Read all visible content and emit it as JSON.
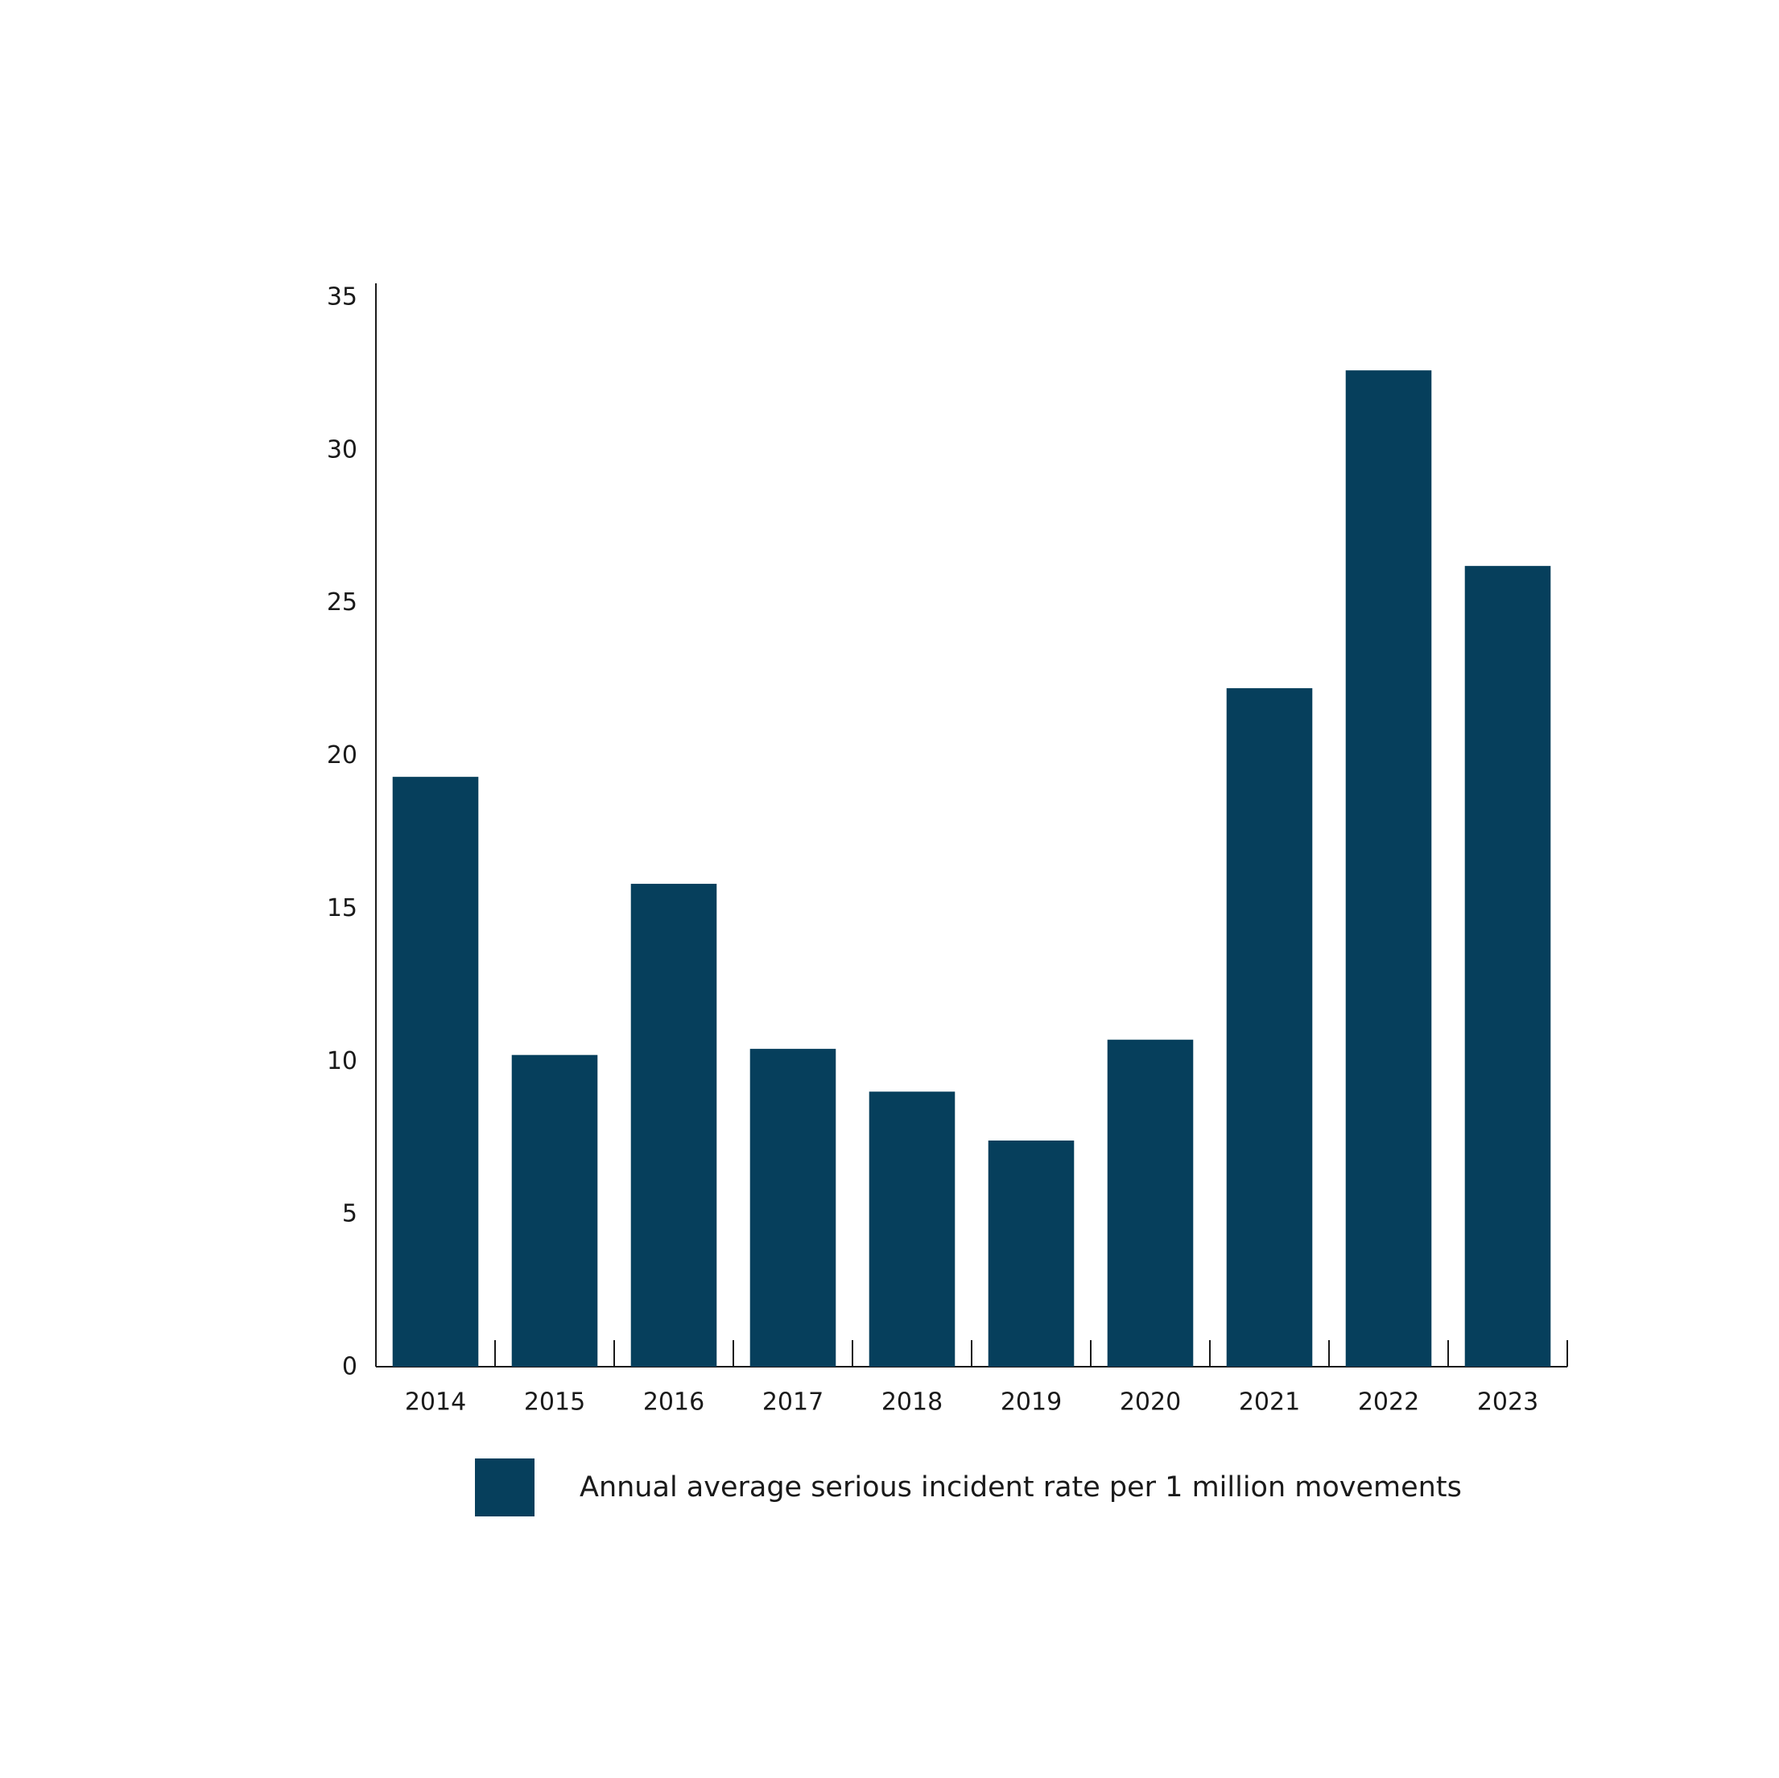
{
  "chart_data": {
    "type": "bar",
    "categories": [
      "2014",
      "2015",
      "2016",
      "2017",
      "2018",
      "2019",
      "2020",
      "2021",
      "2022",
      "2023"
    ],
    "series": [
      {
        "name": "Annual average serious incident rate per 1 million movements",
        "values": [
          19.3,
          10.2,
          15.8,
          10.4,
          9.0,
          7.4,
          10.7,
          22.2,
          32.6,
          26.2
        ]
      }
    ],
    "ylim": [
      0,
      35
    ],
    "yticks": [
      "0",
      "5",
      "10",
      "15",
      "20",
      "25",
      "30",
      "35"
    ],
    "title": "",
    "xlabel": "",
    "ylabel": "",
    "grid": false,
    "legend_position": "bottom",
    "colors": {
      "bar": "#063f5c",
      "axis": "#1a1a1a"
    }
  }
}
